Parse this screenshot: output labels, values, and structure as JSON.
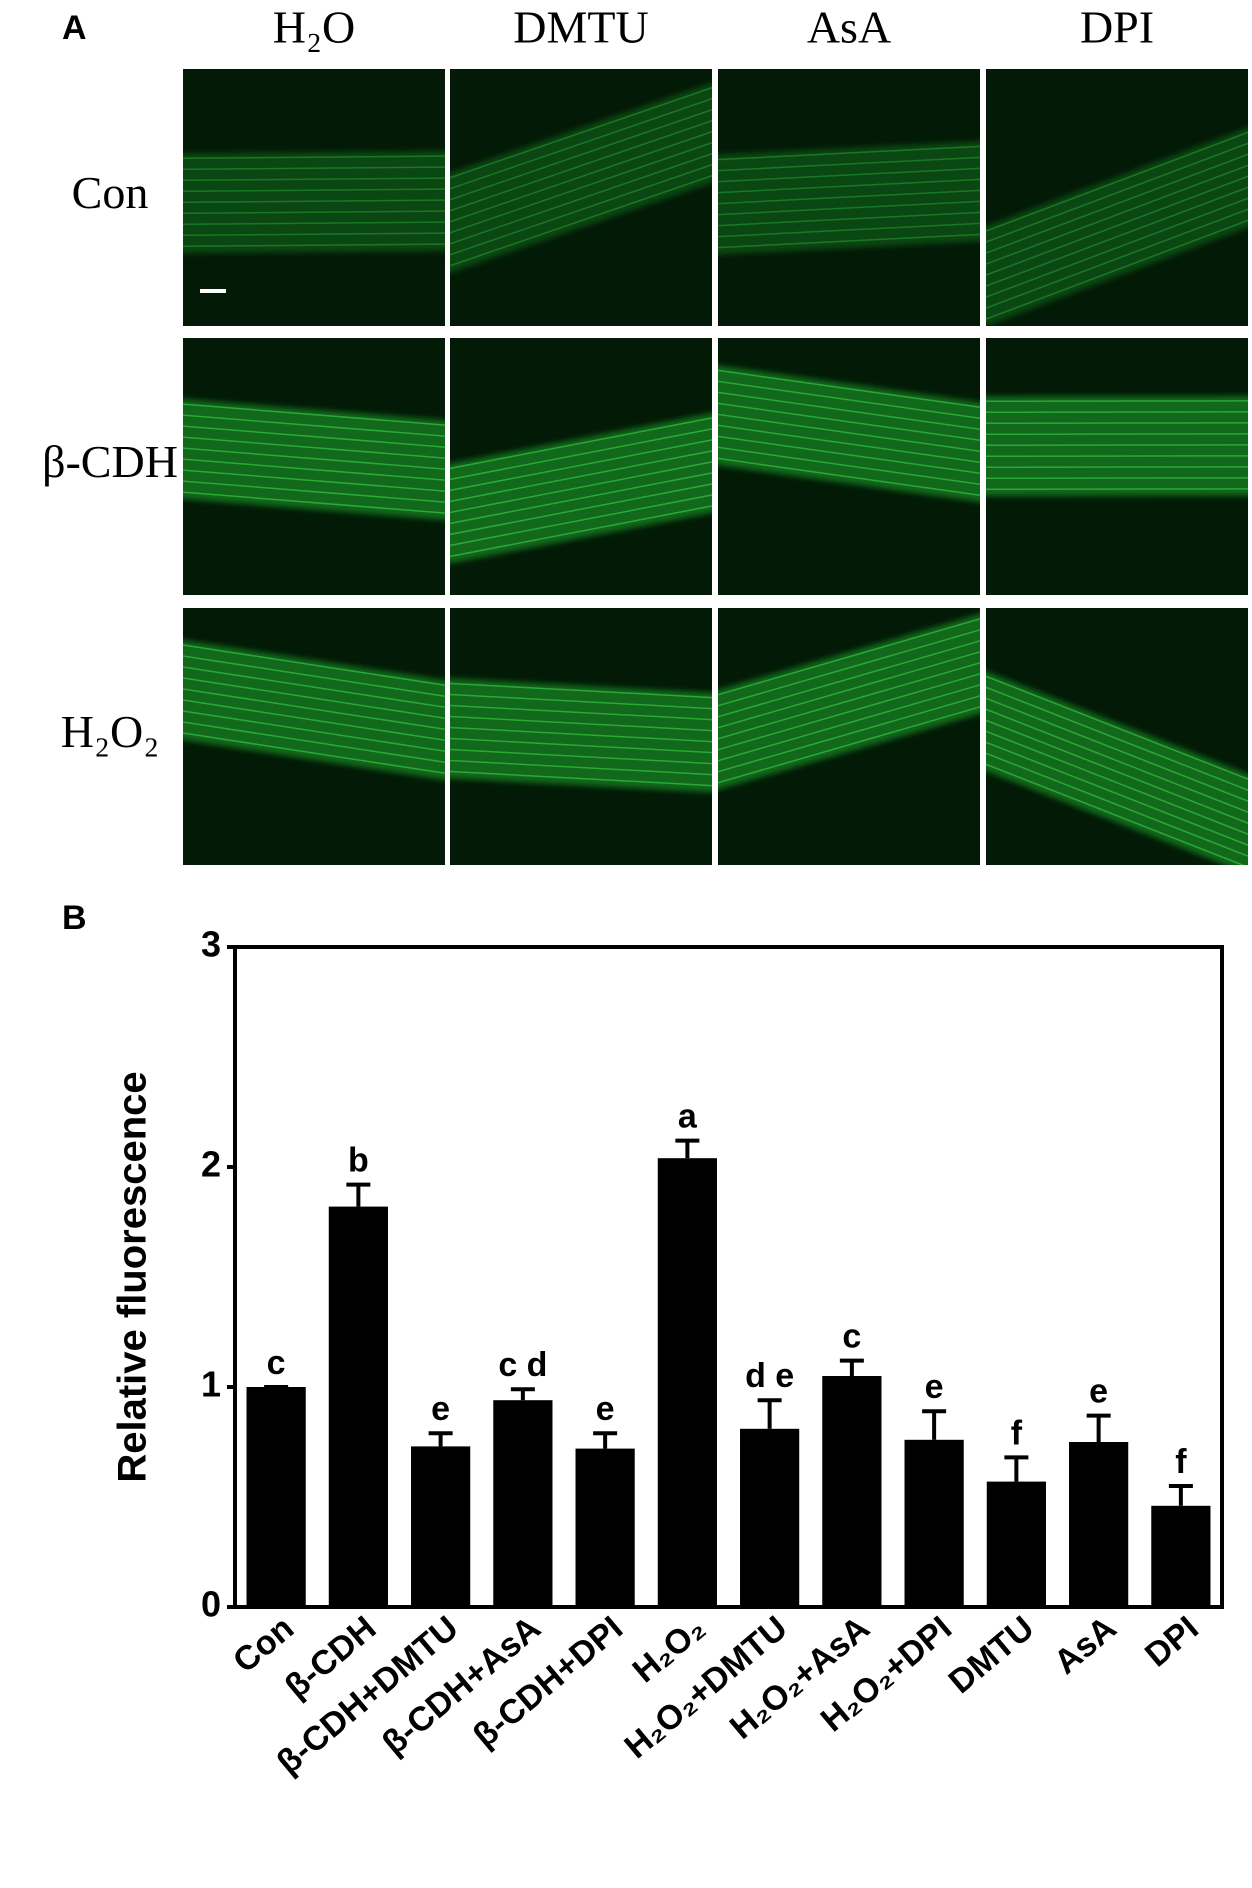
{
  "panel_a": {
    "label": "A",
    "columns": [
      "H₂O",
      "DMTU",
      "AsA",
      "DPI"
    ],
    "rows": [
      "Con",
      "β-CDH",
      "H₂O₂"
    ]
  },
  "chart_data": {
    "type": "bar",
    "panel_label": "B",
    "y_label": "Relative fluorescence",
    "categories": [
      "Con",
      "β-CDH",
      "β-CDH+DMTU",
      "β-CDH+AsA",
      "β-CDH+DPI",
      "H₂O₂",
      "H₂O₂+DMTU",
      "H₂O₂+AsA",
      "H₂O₂+DPI",
      "DMTU",
      "AsA",
      "DPI"
    ],
    "values": [
      1.0,
      1.82,
      0.73,
      0.94,
      0.72,
      2.04,
      0.81,
      1.05,
      0.76,
      0.57,
      0.75,
      0.46
    ],
    "errors": [
      0.0,
      0.1,
      0.06,
      0.05,
      0.07,
      0.08,
      0.13,
      0.07,
      0.13,
      0.11,
      0.12,
      0.09
    ],
    "annotations": [
      "c",
      "b",
      "e",
      "c d",
      "e",
      "a",
      "d e",
      "c",
      "e",
      "f",
      "e",
      "f"
    ],
    "color": "#000000",
    "ylim": [
      0,
      3
    ],
    "yticks": [
      0,
      1,
      2,
      3
    ]
  }
}
